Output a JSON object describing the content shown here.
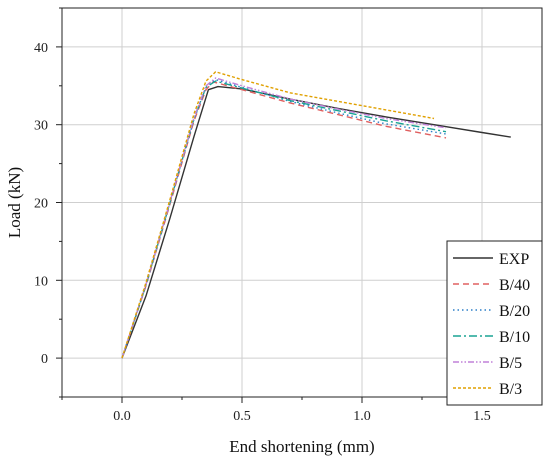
{
  "chart_data": {
    "type": "line",
    "title": "",
    "xlabel": "End shortening (mm)",
    "ylabel": "Load (kN)",
    "xlim": [
      -0.25,
      1.75
    ],
    "ylim": [
      -5,
      45
    ],
    "x_ticks": [
      0.0,
      0.5,
      1.0,
      1.5
    ],
    "x_tick_labels": [
      "0.0",
      "0.5",
      "1.0",
      "1.5"
    ],
    "y_ticks": [
      0,
      10,
      20,
      30,
      40
    ],
    "y_tick_labels": [
      "0",
      "10",
      "20",
      "30",
      "40"
    ],
    "grid": true,
    "legend_position": "bottom-right",
    "series": [
      {
        "name": "EXP",
        "color": "#333333",
        "dash": "solid",
        "points": [
          [
            0.0,
            0.0
          ],
          [
            0.1,
            8.0
          ],
          [
            0.2,
            18.0
          ],
          [
            0.3,
            28.5
          ],
          [
            0.36,
            34.5
          ],
          [
            0.4,
            34.9
          ],
          [
            0.5,
            34.6
          ],
          [
            0.7,
            33.3
          ],
          [
            0.9,
            32.1
          ],
          [
            1.1,
            31.0
          ],
          [
            1.3,
            30.0
          ],
          [
            1.5,
            29.0
          ],
          [
            1.62,
            28.4
          ]
        ]
      },
      {
        "name": "B/40",
        "color": "#e06060",
        "dash": "6,4",
        "points": [
          [
            0.0,
            0.0
          ],
          [
            0.1,
            9.3
          ],
          [
            0.2,
            19.8
          ],
          [
            0.3,
            30.5
          ],
          [
            0.35,
            34.5
          ],
          [
            0.38,
            35.5
          ],
          [
            0.5,
            34.5
          ],
          [
            0.7,
            32.8
          ],
          [
            0.9,
            31.3
          ],
          [
            1.1,
            29.8
          ],
          [
            1.35,
            28.3
          ]
        ]
      },
      {
        "name": "B/20",
        "color": "#2c7fc8",
        "dash": "1.5,3",
        "points": [
          [
            0.0,
            0.0
          ],
          [
            0.1,
            9.4
          ],
          [
            0.2,
            20.0
          ],
          [
            0.3,
            30.7
          ],
          [
            0.35,
            34.8
          ],
          [
            0.39,
            35.8
          ],
          [
            0.5,
            34.8
          ],
          [
            0.7,
            33.0
          ],
          [
            0.9,
            31.5
          ],
          [
            1.1,
            30.1
          ],
          [
            1.35,
            28.8
          ]
        ]
      },
      {
        "name": "B/10",
        "color": "#1aa394",
        "dash": "8,3,2,3",
        "points": [
          [
            0.0,
            0.0
          ],
          [
            0.1,
            9.4
          ],
          [
            0.2,
            20.0
          ],
          [
            0.3,
            30.8
          ],
          [
            0.35,
            34.8
          ],
          [
            0.39,
            35.6
          ],
          [
            0.5,
            34.7
          ],
          [
            0.7,
            33.1
          ],
          [
            0.9,
            31.8
          ],
          [
            1.1,
            30.5
          ],
          [
            1.35,
            29.1
          ]
        ]
      },
      {
        "name": "B/5",
        "color": "#c080d8",
        "dash": "6,2,1.5,2,1.5,2",
        "points": [
          [
            0.0,
            0.0
          ],
          [
            0.1,
            9.5
          ],
          [
            0.2,
            20.1
          ],
          [
            0.3,
            30.9
          ],
          [
            0.35,
            35.0
          ],
          [
            0.39,
            36.0
          ],
          [
            0.5,
            35.0
          ],
          [
            0.7,
            33.3
          ],
          [
            0.9,
            32.0
          ],
          [
            1.1,
            30.8
          ],
          [
            1.35,
            29.6
          ]
        ]
      },
      {
        "name": "B/3",
        "color": "#e0a000",
        "dash": "3,2",
        "points": [
          [
            0.0,
            0.0
          ],
          [
            0.1,
            9.7
          ],
          [
            0.2,
            20.4
          ],
          [
            0.3,
            31.4
          ],
          [
            0.35,
            35.6
          ],
          [
            0.39,
            36.8
          ],
          [
            0.5,
            35.8
          ],
          [
            0.7,
            34.1
          ],
          [
            0.9,
            33.0
          ],
          [
            1.1,
            31.9
          ],
          [
            1.3,
            30.8
          ]
        ]
      }
    ]
  }
}
